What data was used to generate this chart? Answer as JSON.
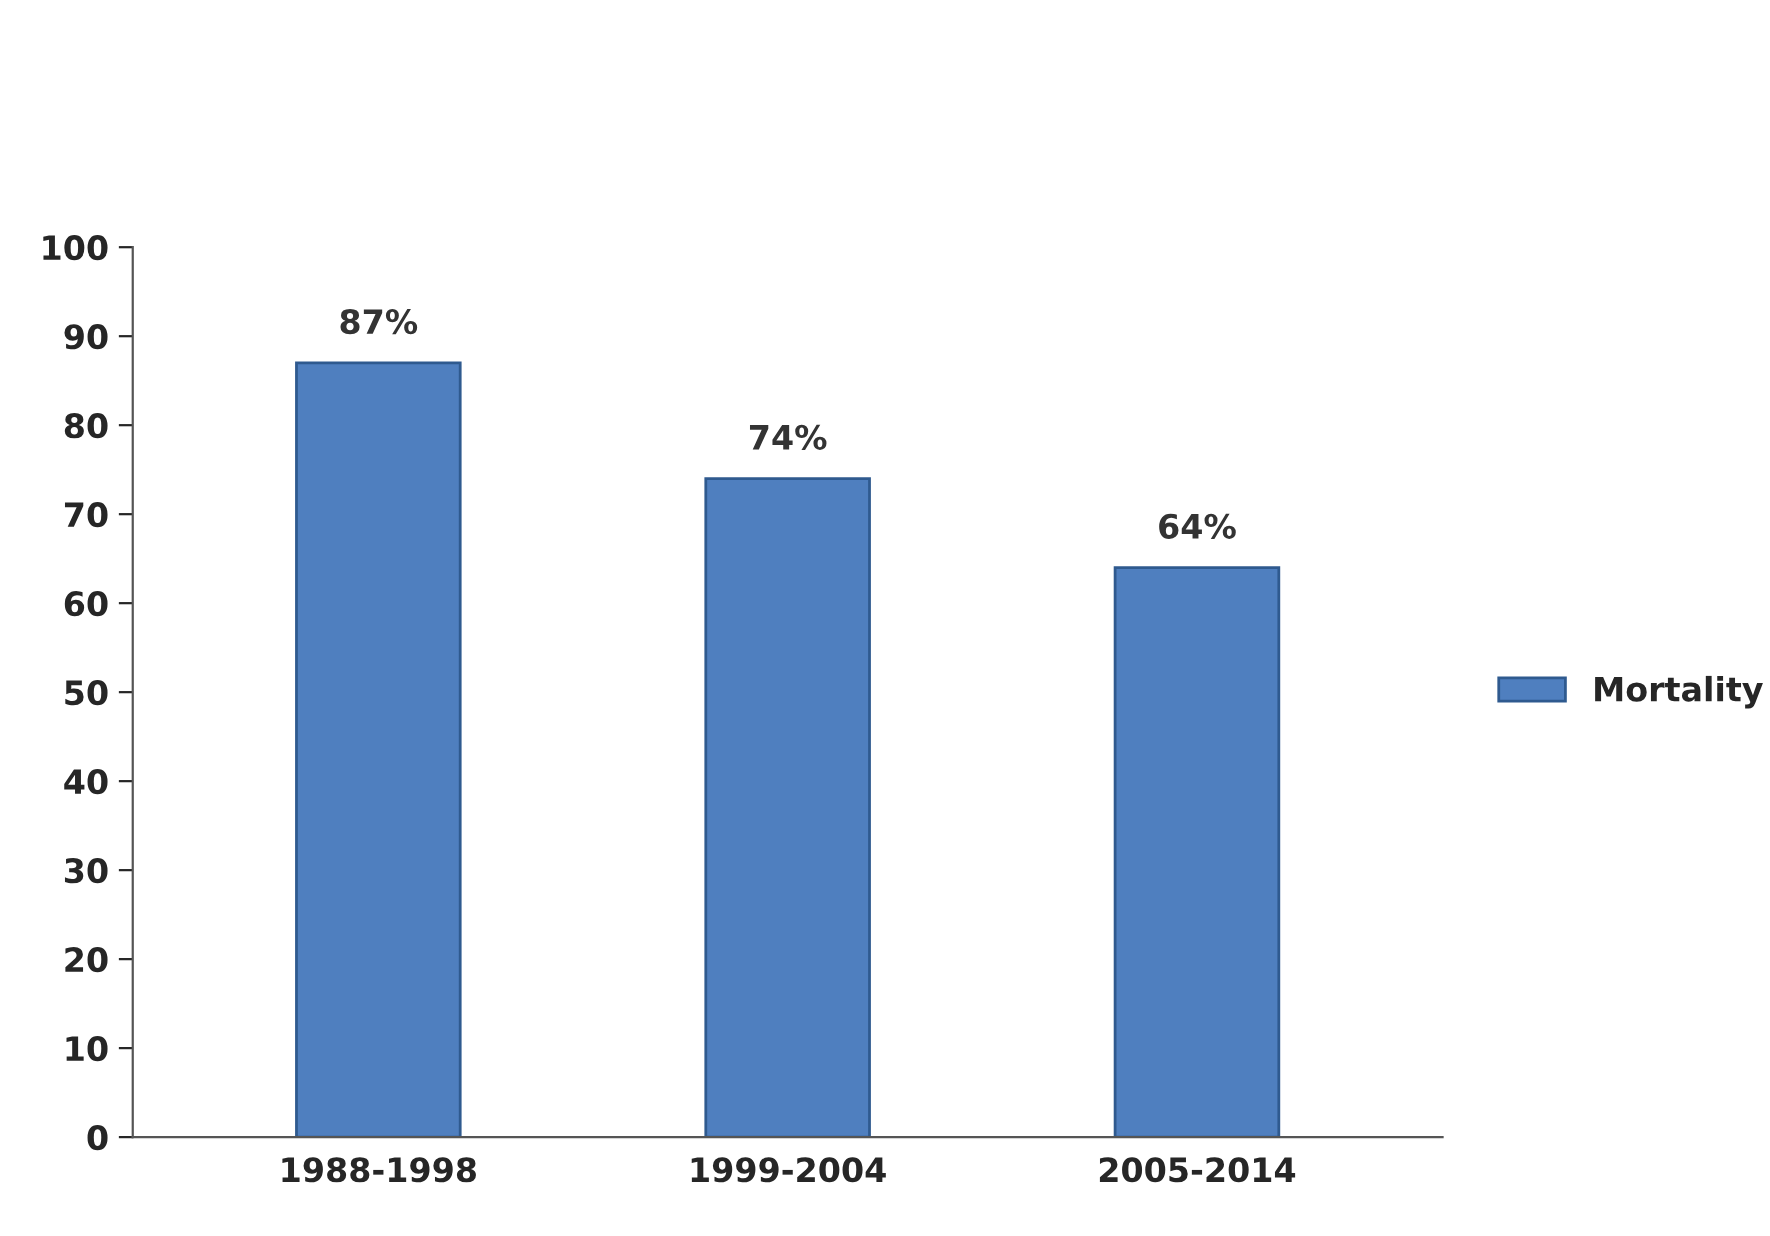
{
  "chart_data": {
    "type": "bar",
    "categories": [
      "1988-1998",
      "1999-2004",
      "2005-2014"
    ],
    "series": [
      {
        "name": "Mortality",
        "color": "#4f7fbf",
        "values": [
          87,
          74,
          64
        ],
        "value_labels": [
          "87%",
          "74%",
          "64%"
        ]
      }
    ],
    "ylim": [
      0,
      100
    ],
    "yticks": [
      0,
      10,
      20,
      30,
      40,
      50,
      60,
      70,
      80,
      90,
      100
    ],
    "grid": false,
    "legend": "right"
  }
}
